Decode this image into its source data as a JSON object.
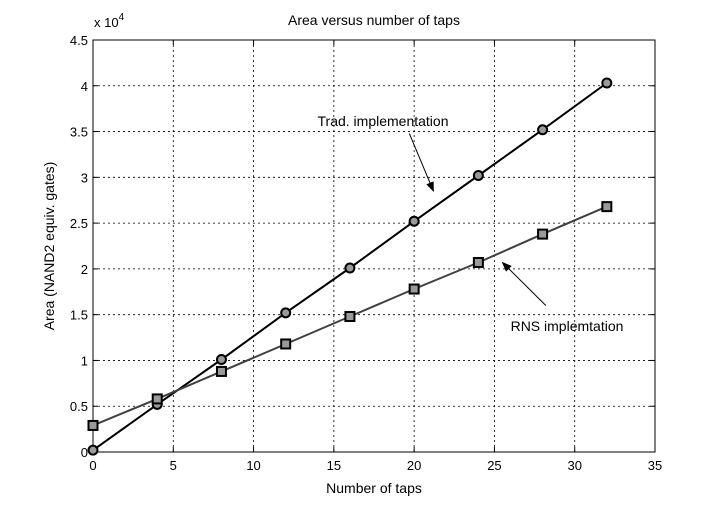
{
  "chart_data": {
    "type": "line",
    "title": "Area versus number of taps",
    "xlabel": "Number of taps",
    "ylabel": "Area (NAND2 equiv. gates)",
    "xlim": [
      0,
      35
    ],
    "ylim": [
      0,
      4.5
    ],
    "x_ticks": [
      "0",
      "5",
      "10",
      "15",
      "20",
      "25",
      "30",
      "35"
    ],
    "y_ticks": [
      "0",
      "0.5",
      "1",
      "1.5",
      "2",
      "2.5",
      "3",
      "3.5",
      "4",
      "4.5"
    ],
    "y_multiplier_base": "x 10",
    "y_multiplier_exp": "4",
    "grid": true,
    "series": [
      {
        "color": "#000000",
        "marker": "circle",
        "x": [
          0,
          4,
          8,
          12,
          16,
          20,
          24,
          28,
          32
        ],
        "values": [
          0.02,
          0.52,
          1.01,
          1.52,
          2.01,
          2.52,
          3.02,
          3.52,
          4.03
        ]
      },
      {
        "color": "#404040",
        "marker": "square",
        "x": [
          0,
          4,
          8,
          12,
          16,
          20,
          24,
          28,
          32
        ],
        "values": [
          0.29,
          0.58,
          0.88,
          1.18,
          1.48,
          1.78,
          2.07,
          2.38,
          2.68
        ]
      }
    ],
    "annotations": [
      {
        "text": "Trad. implementation",
        "arrow_from": [
          19.7,
          3.48
        ],
        "arrow_to": [
          21.2,
          2.85
        ]
      },
      {
        "text": "RNS implemtation",
        "arrow_from": [
          28.2,
          1.6
        ],
        "arrow_to": [
          25.5,
          2.07
        ]
      }
    ]
  }
}
